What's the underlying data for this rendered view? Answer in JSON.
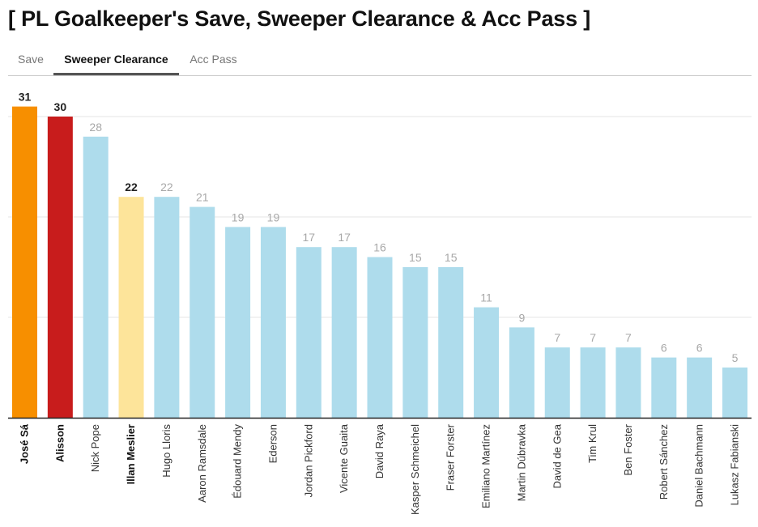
{
  "title": "[ PL Goalkeeper's Save, Sweeper Clearance & Acc Pass ]",
  "tabs": [
    {
      "label": "Save",
      "active": false
    },
    {
      "label": "Sweeper Clearance",
      "active": true
    },
    {
      "label": "Acc Pass",
      "active": false
    }
  ],
  "colors": {
    "default_bar": "#aedcec",
    "highlight_orange": "#f78f00",
    "highlight_red": "#c81c1c",
    "highlight_yellow": "#fde49a",
    "label_muted": "#a8a8a8",
    "label_strong": "#222222"
  },
  "chart_data": {
    "type": "bar",
    "categories": [
      "José Sá",
      "Alisson",
      "Nick Pope",
      "Illan Meslier",
      "Hugo Lloris",
      "Aaron Ramsdale",
      "Édouard Mendy",
      "Ederson",
      "Jordan Pickford",
      "Vicente Guaita",
      "David Raya",
      "Kasper Schmeichel",
      "Fraser Forster",
      "Emiliano Martínez",
      "Martin Dúbravka",
      "David de Gea",
      "Tim Krul",
      "Ben Foster",
      "Robert Sánchez",
      "Daniel Bachmann",
      "Lukasz Fabianski"
    ],
    "values": [
      31,
      30,
      28,
      22,
      22,
      21,
      19,
      19,
      17,
      17,
      16,
      15,
      15,
      11,
      9,
      7,
      7,
      7,
      6,
      6,
      5
    ],
    "highlighted": {
      "José Sá": "#f78f00",
      "Alisson": "#c81c1c",
      "Illan Meslier": "#fde49a"
    },
    "ylim": [
      0,
      32
    ],
    "grid": true,
    "xlabel": "",
    "ylabel": ""
  }
}
